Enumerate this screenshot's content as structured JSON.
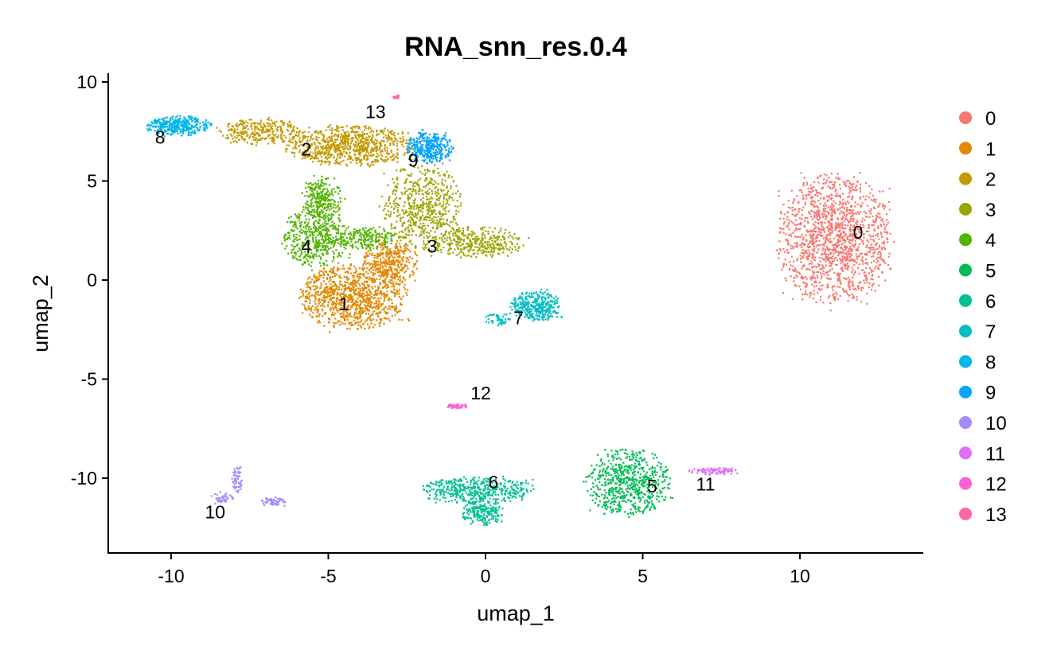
{
  "chart_data": {
    "type": "scatter",
    "title": "RNA_snn_res.0.4",
    "xlabel": "umap_1",
    "ylabel": "umap_2",
    "xlim": [
      -12,
      13.9
    ],
    "ylim": [
      -13.8,
      10.4
    ],
    "xticks": [
      "-10",
      "-5",
      "0",
      "5",
      "10"
    ],
    "yticks": [
      "-10",
      "-5",
      "0",
      "5",
      "10"
    ],
    "grid": false,
    "legend_position": "right",
    "clusters": [
      {
        "id": "0",
        "color": "#F8766D",
        "label_pos": [
          11.85,
          2.4
        ],
        "regions": [
          [
            11.1,
            2.1,
            1.6,
            2.9,
            1400
          ]
        ]
      },
      {
        "id": "1",
        "color": "#E38900",
        "label_pos": [
          -4.5,
          -1.2
        ],
        "regions": [
          [
            -4.2,
            -0.8,
            1.5,
            1.5,
            1000
          ],
          [
            -3.0,
            0.9,
            0.8,
            1.0,
            350
          ]
        ]
      },
      {
        "id": "2",
        "color": "#C49A00",
        "label_pos": [
          -5.7,
          6.6
        ],
        "regions": [
          [
            -7.1,
            7.5,
            1.2,
            0.6,
            300
          ],
          [
            -4.3,
            6.8,
            1.8,
            0.9,
            800
          ]
        ]
      },
      {
        "id": "3",
        "color": "#99A800",
        "label_pos": [
          -1.7,
          1.7
        ],
        "regions": [
          [
            -2.0,
            3.7,
            1.1,
            2.0,
            600
          ],
          [
            -0.25,
            1.9,
            1.3,
            0.7,
            350
          ]
        ]
      },
      {
        "id": "4",
        "color": "#53B400",
        "label_pos": [
          -5.7,
          1.7
        ],
        "regions": [
          [
            -5.4,
            2.1,
            0.9,
            1.3,
            450
          ],
          [
            -5.2,
            4.1,
            0.6,
            1.0,
            250
          ],
          [
            -3.8,
            2.1,
            0.8,
            0.5,
            200
          ]
        ]
      },
      {
        "id": "5",
        "color": "#00BC56",
        "label_pos": [
          5.3,
          -10.4
        ],
        "regions": [
          [
            4.55,
            -10.2,
            1.2,
            1.5,
            650
          ]
        ]
      },
      {
        "id": "6",
        "color": "#00C094",
        "label_pos": [
          0.25,
          -10.2
        ],
        "regions": [
          [
            -0.25,
            -10.6,
            1.6,
            0.6,
            450
          ],
          [
            -0.1,
            -11.7,
            0.6,
            0.6,
            200
          ]
        ]
      },
      {
        "id": "7",
        "color": "#00BFC4",
        "label_pos": [
          1.05,
          -1.9
        ],
        "regions": [
          [
            1.6,
            -1.3,
            0.7,
            0.7,
            350
          ],
          [
            0.4,
            -2.0,
            0.4,
            0.3,
            50
          ]
        ]
      },
      {
        "id": "8",
        "color": "#00B6EB",
        "label_pos": [
          -10.35,
          7.2
        ],
        "regions": [
          [
            -9.75,
            7.8,
            0.9,
            0.45,
            350
          ]
        ]
      },
      {
        "id": "9",
        "color": "#06A4FF",
        "label_pos": [
          -2.3,
          6.05
        ],
        "regions": [
          [
            -1.75,
            6.7,
            0.65,
            0.7,
            350
          ]
        ]
      },
      {
        "id": "10",
        "color": "#A58AFF",
        "label_pos": [
          -8.6,
          -11.7
        ],
        "regions": [
          [
            -7.9,
            -10.0,
            0.15,
            0.7,
            60
          ],
          [
            -8.35,
            -11.0,
            0.3,
            0.3,
            40
          ],
          [
            -6.75,
            -11.2,
            0.4,
            0.2,
            60
          ]
        ]
      },
      {
        "id": "11",
        "color": "#DF70F8",
        "label_pos": [
          7.0,
          -10.3
        ],
        "regions": [
          [
            7.35,
            -9.65,
            0.8,
            0.15,
            90
          ]
        ]
      },
      {
        "id": "12",
        "color": "#FB61D7",
        "label_pos": [
          -0.15,
          -5.7
        ],
        "regions": [
          [
            -0.95,
            -6.35,
            0.3,
            0.1,
            60
          ]
        ]
      },
      {
        "id": "13",
        "color": "#FF66A8",
        "label_pos": [
          -3.5,
          8.5
        ],
        "regions": [
          [
            -2.85,
            9.25,
            0.1,
            0.1,
            20
          ]
        ]
      }
    ]
  }
}
